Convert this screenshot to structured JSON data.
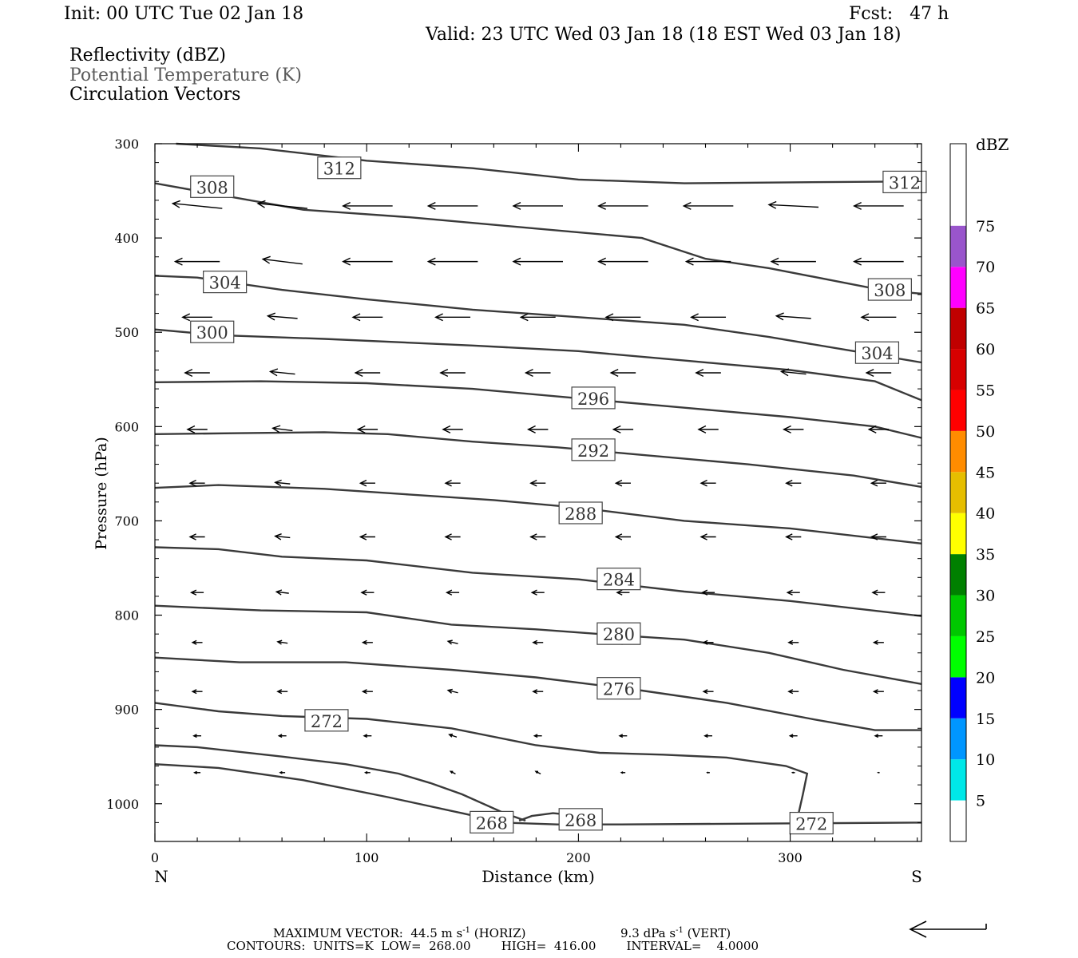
{
  "header": {
    "init": "Init: 00 UTC Tue 02 Jan 18",
    "fcst": "Fcst:   47 h",
    "valid": "Valid: 23 UTC Wed 03 Jan 18 (18 EST Wed 03 Jan 18)",
    "field_reflectivity": "Reflectivity (dBZ)",
    "field_theta": "Potential Temperature (K)",
    "field_vectors": "Circulation Vectors"
  },
  "footer": {
    "max_vector": "MAXIMUM VECTOR:  44.5 m s",
    "max_vector_unit_sup": "-1",
    "max_vector_horiz": " (HORIZ)",
    "max_vector_vert": "9.3 dPa s",
    "max_vector_vert_sup": "-1",
    "max_vector_vert_suffix": " (VERT)",
    "contours": "CONTOURS:  UNITS=K  LOW=  268.00        HIGH=  416.00        INTERVAL=    4.0000"
  },
  "colors": {
    "contour": "#3a3a3a",
    "vector": "#000000",
    "colorbar": [
      "#00e8e8",
      "#0096ff",
      "#0000ff",
      "#00ff00",
      "#00c800",
      "#008000",
      "#ffff00",
      "#e6be00",
      "#ff8c00",
      "#ff0000",
      "#d70000",
      "#c00000",
      "#ff00ff",
      "#9955cc"
    ]
  },
  "chart_data": {
    "type": "cross-section",
    "xlabel": "Distance (km)",
    "ylabel": "Pressure (hPa)",
    "xlim": [
      0,
      362
    ],
    "ylim": [
      1040,
      300
    ],
    "x_ticks": [
      0,
      100,
      200,
      300
    ],
    "y_ticks": [
      300,
      400,
      500,
      600,
      700,
      800,
      900,
      1000
    ],
    "x_end_labels": {
      "left": "N",
      "right": "S"
    },
    "colorbar": {
      "unit": "dBZ",
      "ticks": [
        5,
        10,
        15,
        20,
        25,
        30,
        35,
        40,
        45,
        50,
        55,
        60,
        65,
        70,
        75
      ]
    },
    "contours": [
      {
        "value": 268,
        "points": [
          [
            0,
            958
          ],
          [
            30,
            962
          ],
          [
            70,
            975
          ],
          [
            110,
            993
          ],
          [
            145,
            1010
          ],
          [
            165,
            1020
          ],
          [
            190,
            1022
          ],
          [
            220,
            1022
          ],
          [
            362,
            1020
          ]
        ]
      },
      {
        "value": 272,
        "points": [
          [
            0,
            938
          ],
          [
            20,
            940
          ],
          [
            60,
            950
          ],
          [
            90,
            958
          ],
          [
            115,
            968
          ],
          [
            130,
            978
          ],
          [
            145,
            990
          ],
          [
            165,
            1010
          ],
          [
            175,
            1018
          ]
        ]
      },
      {
        "value": 268,
        "points": [
          [
            172,
            1018
          ],
          [
            178,
            1013
          ],
          [
            188,
            1010
          ],
          [
            197,
            1012
          ]
        ]
      },
      {
        "value": 272,
        "points": [
          [
            0,
            893
          ],
          [
            30,
            902
          ],
          [
            60,
            907
          ],
          [
            100,
            910
          ],
          [
            140,
            920
          ],
          [
            180,
            938
          ],
          [
            210,
            946
          ],
          [
            240,
            948
          ],
          [
            270,
            951
          ],
          [
            298,
            960
          ],
          [
            308,
            968
          ],
          [
            306,
            990
          ],
          [
            303,
            1020
          ]
        ]
      },
      {
        "value": 276,
        "points": [
          [
            0,
            845
          ],
          [
            40,
            850
          ],
          [
            90,
            850
          ],
          [
            140,
            858
          ],
          [
            180,
            866
          ],
          [
            230,
            880
          ],
          [
            270,
            893
          ],
          [
            310,
            910
          ],
          [
            340,
            922
          ],
          [
            362,
            922
          ]
        ]
      },
      {
        "value": 280,
        "points": [
          [
            0,
            790
          ],
          [
            50,
            795
          ],
          [
            100,
            797
          ],
          [
            140,
            810
          ],
          [
            180,
            815
          ],
          [
            210,
            820
          ],
          [
            250,
            826
          ],
          [
            290,
            840
          ],
          [
            325,
            858
          ],
          [
            362,
            873
          ]
        ]
      },
      {
        "value": 284,
        "points": [
          [
            0,
            728
          ],
          [
            30,
            730
          ],
          [
            60,
            738
          ],
          [
            100,
            742
          ],
          [
            150,
            755
          ],
          [
            200,
            762
          ],
          [
            250,
            775
          ],
          [
            300,
            785
          ],
          [
            362,
            801
          ]
        ]
      },
      {
        "value": 288,
        "points": [
          [
            0,
            665
          ],
          [
            30,
            662
          ],
          [
            80,
            666
          ],
          [
            120,
            672
          ],
          [
            160,
            678
          ],
          [
            200,
            686
          ],
          [
            250,
            700
          ],
          [
            300,
            708
          ],
          [
            362,
            724
          ]
        ]
      },
      {
        "value": 292,
        "points": [
          [
            0,
            608
          ],
          [
            40,
            607
          ],
          [
            80,
            606
          ],
          [
            110,
            608
          ],
          [
            150,
            616
          ],
          [
            190,
            622
          ],
          [
            230,
            630
          ],
          [
            280,
            640
          ],
          [
            330,
            652
          ],
          [
            362,
            664
          ]
        ]
      },
      {
        "value": 296,
        "points": [
          [
            0,
            553
          ],
          [
            50,
            552
          ],
          [
            100,
            554
          ],
          [
            150,
            560
          ],
          [
            200,
            570
          ],
          [
            250,
            580
          ],
          [
            300,
            590
          ],
          [
            340,
            600
          ],
          [
            362,
            612
          ]
        ]
      },
      {
        "value": 300,
        "points": [
          [
            0,
            497
          ],
          [
            30,
            503
          ],
          [
            80,
            507
          ],
          [
            150,
            514
          ],
          [
            200,
            520
          ],
          [
            250,
            530
          ],
          [
            300,
            540
          ],
          [
            340,
            552
          ],
          [
            362,
            572
          ]
        ]
      },
      {
        "value": 304,
        "points": [
          [
            0,
            440
          ],
          [
            20,
            442
          ],
          [
            60,
            455
          ],
          [
            100,
            465
          ],
          [
            150,
            476
          ],
          [
            200,
            484
          ],
          [
            250,
            492
          ],
          [
            290,
            505
          ],
          [
            330,
            520
          ],
          [
            362,
            532
          ]
        ]
      },
      {
        "value": 308,
        "points": [
          [
            0,
            342
          ],
          [
            30,
            354
          ],
          [
            70,
            370
          ],
          [
            120,
            378
          ],
          [
            160,
            386
          ],
          [
            230,
            400
          ],
          [
            260,
            422
          ],
          [
            290,
            432
          ],
          [
            320,
            445
          ],
          [
            345,
            456
          ],
          [
            362,
            459
          ]
        ]
      },
      {
        "value": 312,
        "points": [
          [
            10,
            300
          ],
          [
            50,
            305
          ],
          [
            100,
            318
          ],
          [
            150,
            326
          ],
          [
            200,
            338
          ],
          [
            250,
            342
          ],
          [
            300,
            341
          ],
          [
            362,
            340
          ]
        ]
      }
    ],
    "contour_labels": [
      {
        "value": 312,
        "x": 78,
        "p": 326
      },
      {
        "value": 312,
        "x": 345,
        "p": 341
      },
      {
        "value": 308,
        "x": 18,
        "p": 346
      },
      {
        "value": 308,
        "x": 338,
        "p": 455
      },
      {
        "value": 304,
        "x": 24,
        "p": 447
      },
      {
        "value": 304,
        "x": 332,
        "p": 522
      },
      {
        "value": 300,
        "x": 18,
        "p": 500
      },
      {
        "value": 296,
        "x": 198,
        "p": 570
      },
      {
        "value": 292,
        "x": 198,
        "p": 625
      },
      {
        "value": 288,
        "x": 192,
        "p": 692
      },
      {
        "value": 284,
        "x": 210,
        "p": 762
      },
      {
        "value": 280,
        "x": 210,
        "p": 820
      },
      {
        "value": 276,
        "x": 210,
        "p": 878
      },
      {
        "value": 272,
        "x": 72,
        "p": 912
      },
      {
        "value": 268,
        "x": 150,
        "p": 1020
      },
      {
        "value": 268,
        "x": 192,
        "p": 1017
      },
      {
        "value": 272,
        "x": 301,
        "p": 1021
      }
    ],
    "vector_rows": [
      {
        "p": 366,
        "u": [
          -1.0,
          -1.0,
          -1.0,
          -1.0,
          -1.0,
          -1.0,
          -1.0,
          -1.0,
          -1.0
        ],
        "w": [
          0.1,
          0.1,
          0,
          0,
          0,
          0,
          0,
          0.05,
          0
        ]
      },
      {
        "p": 425,
        "u": [
          -0.9,
          -0.8,
          -1.0,
          -1.0,
          -1.0,
          -1.0,
          -0.9,
          -0.9,
          -1.0
        ],
        "w": [
          0,
          0.1,
          0,
          0,
          0,
          0,
          0,
          0,
          0
        ]
      },
      {
        "p": 484,
        "u": [
          -0.6,
          -0.6,
          -0.6,
          -0.7,
          -0.7,
          -0.7,
          -0.7,
          -0.7,
          -0.7
        ],
        "w": [
          0,
          0.05,
          0,
          0,
          0,
          0,
          0,
          0.05,
          0
        ]
      },
      {
        "p": 543,
        "u": [
          -0.5,
          -0.5,
          -0.5,
          -0.5,
          -0.5,
          -0.5,
          -0.5,
          -0.5,
          -0.5
        ],
        "w": [
          0,
          0.05,
          0,
          0,
          0,
          0,
          0,
          0.05,
          0
        ]
      },
      {
        "p": 603,
        "u": [
          -0.4,
          -0.4,
          -0.4,
          -0.4,
          -0.4,
          -0.4,
          -0.4,
          -0.4,
          -0.4
        ],
        "w": [
          0,
          0.05,
          0,
          0,
          0,
          0,
          0,
          0,
          0
        ]
      },
      {
        "p": 660,
        "u": [
          -0.3,
          -0.3,
          -0.3,
          -0.3,
          -0.3,
          -0.3,
          -0.3,
          -0.3,
          -0.3
        ],
        "w": [
          0,
          0.03,
          0,
          0,
          0,
          0,
          0,
          0,
          0
        ]
      },
      {
        "p": 717,
        "u": [
          -0.3,
          -0.3,
          -0.3,
          -0.3,
          -0.3,
          -0.3,
          -0.3,
          -0.3,
          -0.3
        ],
        "w": [
          0,
          0.03,
          0,
          0,
          0,
          0,
          0,
          0,
          0
        ]
      },
      {
        "p": 776,
        "u": [
          -0.25,
          -0.25,
          -0.25,
          -0.25,
          -0.25,
          -0.25,
          -0.25,
          -0.25,
          -0.25
        ],
        "w": [
          0,
          0.03,
          0,
          0,
          0,
          0,
          0,
          0,
          0
        ]
      },
      {
        "p": 829,
        "u": [
          -0.2,
          -0.2,
          -0.2,
          -0.2,
          -0.2,
          -0.2,
          -0.2,
          -0.2,
          -0.2
        ],
        "w": [
          0,
          0.03,
          0,
          0.05,
          0,
          0,
          0,
          0,
          0
        ]
      },
      {
        "p": 881,
        "u": [
          -0.2,
          -0.2,
          -0.2,
          -0.2,
          -0.2,
          -0.2,
          -0.2,
          -0.2,
          -0.2
        ],
        "w": [
          0,
          0,
          0,
          0.05,
          0,
          0,
          0,
          0,
          0
        ]
      },
      {
        "p": 928,
        "u": [
          -0.15,
          -0.15,
          -0.15,
          -0.15,
          -0.15,
          -0.15,
          -0.15,
          -0.15,
          -0.15
        ],
        "w": [
          0,
          0,
          0,
          0.05,
          0,
          0,
          0,
          0,
          0
        ]
      },
      {
        "p": 967,
        "u": [
          -0.12,
          -0.1,
          -0.1,
          -0.1,
          -0.1,
          -0.08,
          -0.05,
          -0.05,
          -0.03
        ],
        "w": [
          0,
          0,
          0,
          0.05,
          0.05,
          0,
          0,
          0,
          0
        ]
      }
    ],
    "max_vector_horiz_ms": 44.5,
    "max_vector_vert_dpas": 9.3,
    "contour_units": "K",
    "contour_low": 268.0,
    "contour_high": 416.0,
    "contour_interval": 4.0
  }
}
